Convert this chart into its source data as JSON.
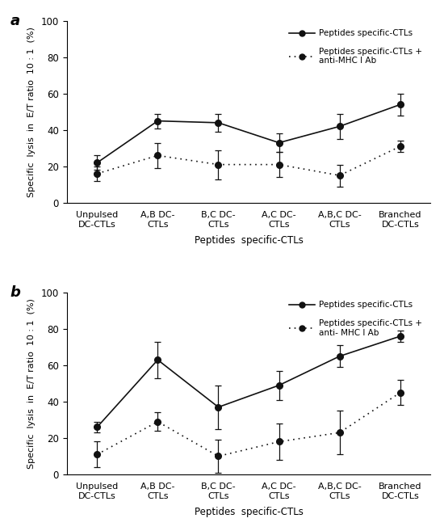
{
  "categories": [
    "Unpulsed\nDC-CTLs",
    "A,B DC-\nCTLs",
    "B,C DC-\nCTLs",
    "A,C DC-\nCTLs",
    "A,B,C DC-\nCTLs",
    "Branched\nDC-CTLs"
  ],
  "panel_a": {
    "solid_y": [
      22,
      45,
      44,
      33,
      42,
      54
    ],
    "solid_err": [
      4,
      4,
      5,
      5,
      7,
      6
    ],
    "dotted_y": [
      16,
      26,
      21,
      21,
      15,
      31
    ],
    "dotted_err": [
      4,
      7,
      8,
      7,
      6,
      3
    ]
  },
  "panel_b": {
    "solid_y": [
      26,
      63,
      37,
      49,
      65,
      76
    ],
    "solid_err": [
      3,
      10,
      12,
      8,
      6,
      3
    ],
    "dotted_y": [
      11,
      29,
      10,
      18,
      23,
      45
    ],
    "dotted_err": [
      7,
      5,
      9,
      10,
      12,
      7
    ]
  },
  "ylabel": "Specific  lysis  in  E/T ratio  10 : 1  (%)",
  "xlabel_a": "Peptides  specific-CTLs",
  "xlabel_b": "Peptides  specific-CTLs",
  "legend_solid": "Peptides specific-CTLs",
  "legend_dotted_a": "Peptides specific-CTLs +\nanti-MHC I Ab",
  "legend_dotted_b": "Peptides specific-CTLs +\nanti- MHC I Ab",
  "ylim": [
    0,
    100
  ],
  "yticks": [
    0,
    20,
    40,
    60,
    80,
    100
  ],
  "line_color": "#111111",
  "label_a": "a",
  "label_b": "b"
}
